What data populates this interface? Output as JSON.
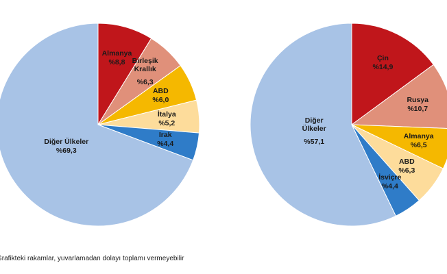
{
  "chart_data": [
    {
      "type": "pie",
      "categories": [
        "Almanya",
        "Birleşik\nKrallık",
        "ABD",
        "İtalya",
        "Irak",
        "Diğer Ülkeler"
      ],
      "values": [
        8.8,
        6.3,
        6.0,
        5.2,
        4.4,
        69.3
      ],
      "value_labels": [
        "%8,8",
        "%6,3",
        "%6,0",
        "%5,2",
        "%4,4",
        "%69,3"
      ],
      "colors": [
        "#c0161b",
        "#e0907a",
        "#f5b800",
        "#fddc9b",
        "#2f7cc8",
        "#a8c3e6"
      ]
    },
    {
      "type": "pie",
      "categories": [
        "Çin",
        "Rusya",
        "Almanya",
        "ABD",
        "İsviçre",
        "Diğer\nÜlkeler"
      ],
      "values": [
        14.9,
        10.7,
        6.5,
        6.3,
        4.4,
        57.1
      ],
      "value_labels": [
        "%14,9",
        "%10,7",
        "%6,5",
        "%6,3",
        "%4,4",
        "%57,1"
      ],
      "colors": [
        "#c0161b",
        "#e0907a",
        "#f5b800",
        "#fddc9b",
        "#2f7cc8",
        "#a8c3e6"
      ]
    }
  ],
  "footnote": "Grafikteki rakamlar, yuvarlamadan dolayı toplamı vermeyebilir"
}
